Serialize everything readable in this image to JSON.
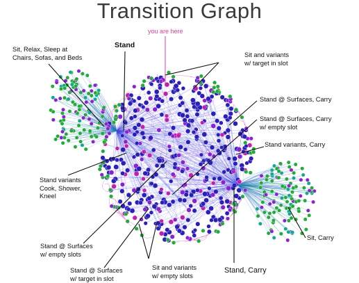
{
  "title": "Transition Graph",
  "marker": "you are here",
  "labels": {
    "stand": "Stand",
    "sit_relax": "Sit, Relax, Sleep at\nChairs, Sofas, and Beds",
    "sit_target": "Sit and variants\nw/ target in slot",
    "stand_surfaces_carry": "Stand @ Surfaces, Carry",
    "stand_surfaces_carry_empty": "Stand @ Surfaces, Carry\nw/ empty slot",
    "stand_variants_carry": "Stand variants, Carry",
    "stand_variants_cook": "Stand variants\nCook, Shower,\nKneel",
    "stand_surfaces_empty": "Stand @ Surfaces\nw/ empty slots",
    "stand_surfaces_target": "Stand @ Surfaces\nw/ target in slot",
    "sit_empty": "Sit and variants\nw/ empty slots",
    "stand_carry": "Stand, Carry",
    "sit_carry": "Sit, Carry"
  },
  "colors": {
    "title": "#3a3a3a",
    "marker": "#e0409a",
    "node_blue": "#2a1fb8",
    "node_purple": "#8a22d0",
    "node_magenta": "#c21eb0",
    "node_green": "#22aa3a",
    "node_teal": "#14a890",
    "edge": "#3b46e0",
    "leader": "#111111"
  }
}
